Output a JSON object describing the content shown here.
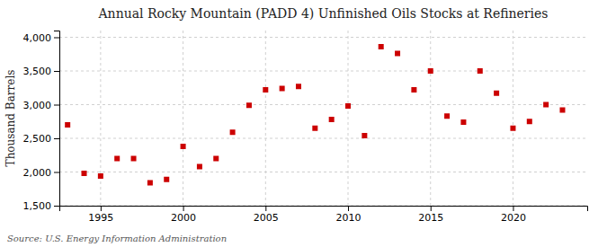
{
  "chart_data": {
    "type": "scatter",
    "title": "Annual Rocky Mountain (PADD 4) Unfinished Oils Stocks at Refineries",
    "ylabel": "Thousand Barrels",
    "annotations": [
      "Source: U.S. Energy Information Administration"
    ],
    "x": [
      1993,
      1994,
      1995,
      1996,
      1997,
      1998,
      1999,
      2000,
      2001,
      2002,
      2003,
      2004,
      2005,
      2006,
      2007,
      2008,
      2009,
      2010,
      2011,
      2012,
      2013,
      2014,
      2015,
      2016,
      2017,
      2018,
      2019,
      2020,
      2021,
      2022,
      2023
    ],
    "values": [
      2700,
      1980,
      1940,
      2200,
      2200,
      1840,
      1890,
      2380,
      2080,
      2200,
      2590,
      2990,
      3220,
      3240,
      3270,
      2650,
      2780,
      2980,
      2540,
      3860,
      3760,
      3220,
      3500,
      2830,
      2740,
      3500,
      3170,
      2650,
      2750,
      3000,
      2920
    ],
    "color": "#cc0000",
    "marker": "square",
    "xlim": [
      1992.5,
      2024.5
    ],
    "xticks": [
      1995,
      2000,
      2005,
      2010,
      2015,
      2020
    ],
    "ylim": [
      1500,
      4100
    ],
    "yticks": [
      {
        "value": 1500,
        "label": "1,500"
      },
      {
        "value": 2000,
        "label": "2,000"
      },
      {
        "value": 2500,
        "label": "2,500"
      },
      {
        "value": 3000,
        "label": "3,000"
      },
      {
        "value": 3500,
        "label": "3,500"
      },
      {
        "value": 4000,
        "label": "4,000"
      }
    ],
    "grid": true
  }
}
